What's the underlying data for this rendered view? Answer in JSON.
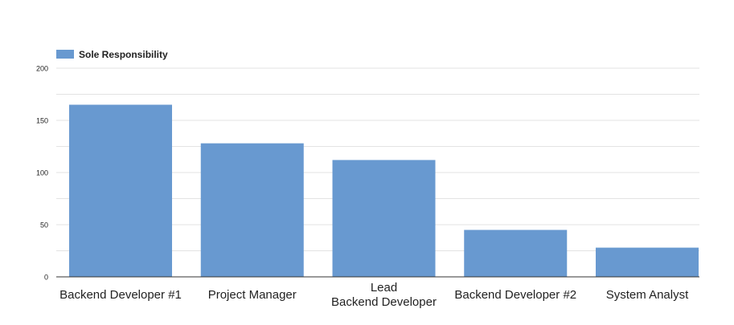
{
  "chart_data": {
    "type": "bar",
    "categories": [
      "Backend Developer #1",
      "Project Manager",
      "Lead\nBackend Developer",
      "Backend Developer #2",
      "System Analyst"
    ],
    "series": [
      {
        "name": "Sole Responsibility",
        "values": [
          165,
          128,
          112,
          45,
          28
        ],
        "color": "#6899D0"
      }
    ],
    "ylim": [
      0,
      200
    ],
    "yticks": [
      0,
      50,
      100,
      150,
      200
    ],
    "grid": true,
    "legend_position": "top-left"
  }
}
